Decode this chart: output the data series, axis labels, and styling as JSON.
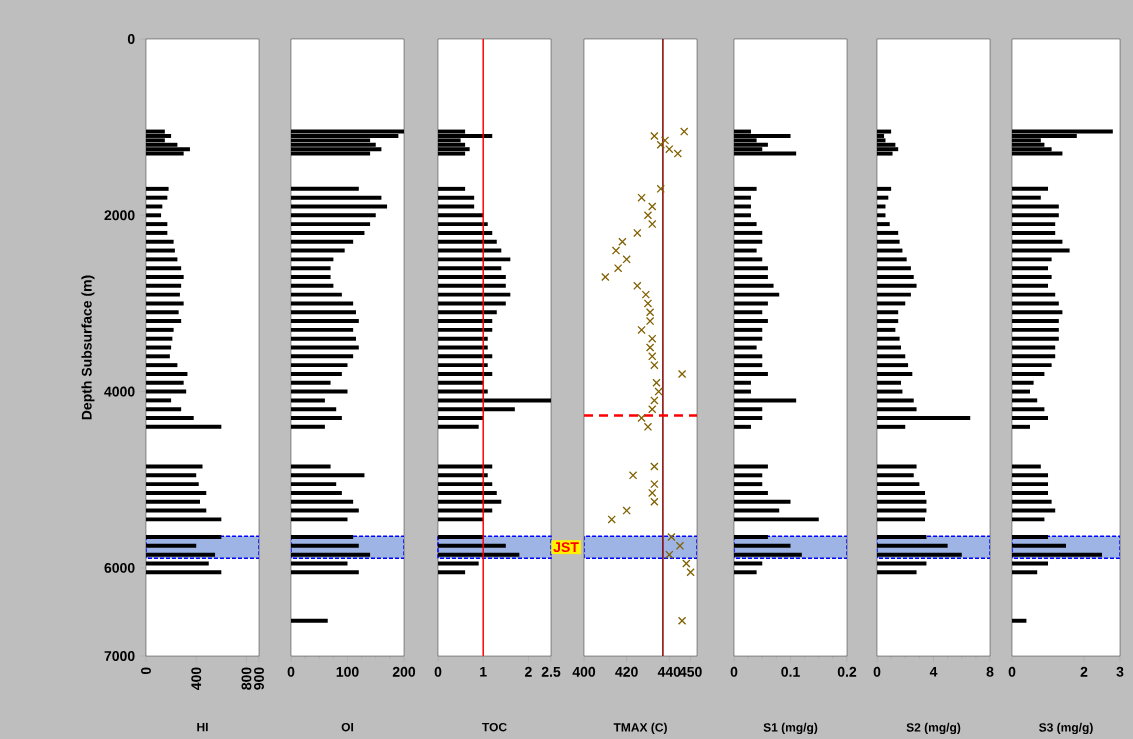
{
  "chart_data": [
    {
      "type": "bar",
      "orientation": "horizontal",
      "xlabel": "HI",
      "ylabel": "Depth Subsurface (m)",
      "color": "#000000",
      "xlim": [
        0,
        900
      ],
      "xticks": [
        0,
        400,
        800,
        900
      ],
      "ylim": [
        7000,
        0
      ],
      "yticks": [
        0,
        2000,
        4000,
        6000,
        7000
      ],
      "x": [
        1050,
        1100,
        1150,
        1200,
        1250,
        1300,
        1700,
        1800,
        1900,
        2000,
        2100,
        2200,
        2300,
        2400,
        2500,
        2600,
        2700,
        2800,
        2900,
        3000,
        3100,
        3200,
        3300,
        3400,
        3500,
        3600,
        3700,
        3800,
        3900,
        4000,
        4100,
        4200,
        4300,
        4400,
        4850,
        4950,
        5050,
        5150,
        5250,
        5350,
        5450,
        5650,
        5750,
        5850,
        5950,
        6050
      ],
      "values": [
        150,
        200,
        150,
        250,
        350,
        300,
        180,
        170,
        130,
        120,
        170,
        170,
        220,
        230,
        250,
        280,
        300,
        280,
        270,
        300,
        260,
        280,
        220,
        210,
        200,
        190,
        250,
        330,
        300,
        320,
        200,
        280,
        380,
        600,
        450,
        400,
        420,
        480,
        430,
        480,
        600,
        600,
        400,
        550,
        500,
        600
      ],
      "bands": [
        {
          "axis": "y",
          "from": 5640,
          "to": 5890,
          "color": "#9db4e4"
        }
      ]
    },
    {
      "type": "bar",
      "orientation": "horizontal",
      "xlabel": "OI",
      "color": "#000000",
      "xlim": [
        0,
        200
      ],
      "xticks": [
        0,
        100,
        200
      ],
      "ylim": [
        7000,
        0
      ],
      "tick_labels": "x",
      "x": [
        1050,
        1100,
        1150,
        1200,
        1250,
        1300,
        1700,
        1800,
        1900,
        2000,
        2100,
        2200,
        2300,
        2400,
        2500,
        2600,
        2700,
        2800,
        2900,
        3000,
        3100,
        3200,
        3300,
        3400,
        3500,
        3600,
        3700,
        3800,
        3900,
        4000,
        4100,
        4200,
        4300,
        4400,
        4850,
        4950,
        5050,
        5150,
        5250,
        5350,
        5450,
        5650,
        5750,
        5850,
        5950,
        6050,
        6600
      ],
      "values": [
        200,
        190,
        140,
        150,
        160,
        140,
        120,
        160,
        170,
        150,
        140,
        130,
        110,
        95,
        75,
        70,
        70,
        75,
        90,
        110,
        115,
        120,
        110,
        115,
        120,
        110,
        100,
        90,
        70,
        100,
        60,
        80,
        90,
        60,
        70,
        130,
        80,
        90,
        110,
        120,
        100,
        110,
        120,
        140,
        100,
        120,
        65
      ],
      "bands": [
        {
          "axis": "y",
          "from": 5640,
          "to": 5890,
          "color": "#9db4e4"
        }
      ]
    },
    {
      "type": "bar",
      "orientation": "horizontal",
      "xlabel": "TOC",
      "color": "#000000",
      "xlim": [
        0,
        2.5
      ],
      "xticks": [
        0,
        1,
        2,
        2.5
      ],
      "ylim": [
        7000,
        0
      ],
      "tick_labels": "x",
      "x": [
        1050,
        1100,
        1150,
        1200,
        1250,
        1300,
        1700,
        1800,
        1900,
        2000,
        2100,
        2200,
        2300,
        2400,
        2500,
        2600,
        2700,
        2800,
        2900,
        3000,
        3100,
        3200,
        3300,
        3400,
        3500,
        3600,
        3700,
        3800,
        3900,
        4000,
        4100,
        4200,
        4300,
        4400,
        4850,
        4950,
        5050,
        5150,
        5250,
        5350,
        5450,
        5650,
        5750,
        5850,
        5950,
        6050
      ],
      "values": [
        0.6,
        1.2,
        0.5,
        0.6,
        0.7,
        0.6,
        0.6,
        0.8,
        0.8,
        1.0,
        1.1,
        1.2,
        1.3,
        1.4,
        1.6,
        1.4,
        1.5,
        1.5,
        1.6,
        1.5,
        1.3,
        1.2,
        1.2,
        1.1,
        1.1,
        1.2,
        1.1,
        1.2,
        1.0,
        1.1,
        2.5,
        1.7,
        1.0,
        0.9,
        1.2,
        1.1,
        1.2,
        1.3,
        1.4,
        1.2,
        1.0,
        1.0,
        1.5,
        1.8,
        0.9,
        0.6
      ],
      "ref_lines": [
        {
          "axis": "x",
          "value": 1,
          "color": "#ff0000"
        }
      ],
      "bands": [
        {
          "axis": "y",
          "from": 5640,
          "to": 5890,
          "color": "#9db4e4",
          "label": "JST"
        }
      ]
    },
    {
      "type": "scatter",
      "xlabel": "TMAX (C)",
      "color": "#806000",
      "marker": "cross",
      "xlim": [
        400,
        453
      ],
      "xticks": [
        400,
        420,
        440,
        450
      ],
      "ylim": [
        7000,
        0
      ],
      "tick_labels": "x",
      "x": [
        447,
        433,
        438,
        436,
        440,
        444,
        436,
        427,
        432,
        430,
        432,
        425,
        418,
        415,
        420,
        416,
        410,
        425,
        429,
        430,
        431,
        431,
        427,
        432,
        431,
        432,
        433,
        446,
        434,
        435,
        433,
        432,
        427,
        430,
        433,
        423,
        433,
        432,
        433,
        420,
        413,
        441,
        445,
        440,
        448,
        450,
        446
      ],
      "values": [
        1050,
        1100,
        1150,
        1200,
        1250,
        1300,
        1700,
        1800,
        1900,
        2000,
        2100,
        2200,
        2300,
        2400,
        2500,
        2600,
        2700,
        2800,
        2900,
        3000,
        3100,
        3200,
        3300,
        3400,
        3500,
        3600,
        3700,
        3800,
        3900,
        4000,
        4100,
        4200,
        4300,
        4400,
        4850,
        4950,
        5050,
        5150,
        5250,
        5350,
        5450,
        5650,
        5750,
        5850,
        5950,
        6050,
        6600
      ],
      "ref_lines": [
        {
          "axis": "x",
          "value": 437,
          "color": "#800000"
        },
        {
          "axis": "y",
          "value": 4270,
          "color": "#ff0000",
          "line_style": "dashed"
        }
      ],
      "bands": [
        {
          "axis": "y",
          "from": 5640,
          "to": 5890,
          "color": "#9db4e4"
        }
      ]
    },
    {
      "type": "bar",
      "orientation": "horizontal",
      "xlabel": "S1 (mg/g)",
      "color": "#000000",
      "xlim": [
        0,
        0.2
      ],
      "xticks": [
        0,
        0.1,
        0.2
      ],
      "ylim": [
        7000,
        0
      ],
      "tick_labels": "x",
      "x": [
        1050,
        1100,
        1150,
        1200,
        1250,
        1300,
        1700,
        1800,
        1900,
        2000,
        2100,
        2200,
        2300,
        2400,
        2500,
        2600,
        2700,
        2800,
        2900,
        3000,
        3100,
        3200,
        3300,
        3400,
        3500,
        3600,
        3700,
        3800,
        3900,
        4000,
        4100,
        4200,
        4300,
        4400,
        4850,
        4950,
        5050,
        5150,
        5250,
        5350,
        5450,
        5650,
        5750,
        5850,
        5950,
        6050
      ],
      "values": [
        0.03,
        0.1,
        0.04,
        0.06,
        0.05,
        0.11,
        0.04,
        0.03,
        0.03,
        0.03,
        0.04,
        0.05,
        0.05,
        0.04,
        0.05,
        0.06,
        0.06,
        0.07,
        0.08,
        0.06,
        0.05,
        0.06,
        0.05,
        0.05,
        0.04,
        0.05,
        0.05,
        0.06,
        0.03,
        0.03,
        0.11,
        0.05,
        0.05,
        0.03,
        0.06,
        0.05,
        0.05,
        0.06,
        0.1,
        0.08,
        0.15,
        0.06,
        0.1,
        0.12,
        0.05,
        0.04
      ],
      "bands": [
        {
          "axis": "y",
          "from": 5640,
          "to": 5890,
          "color": "#9db4e4"
        }
      ]
    },
    {
      "type": "bar",
      "orientation": "horizontal",
      "xlabel": "S2 (mg/g)",
      "color": "#000000",
      "xlim": [
        0,
        8
      ],
      "xticks": [
        0,
        4,
        8
      ],
      "ylim": [
        7000,
        0
      ],
      "tick_labels": "x",
      "x": [
        1050,
        1100,
        1150,
        1200,
        1250,
        1300,
        1700,
        1800,
        1900,
        2000,
        2100,
        2200,
        2300,
        2400,
        2500,
        2600,
        2700,
        2800,
        2900,
        3000,
        3100,
        3200,
        3300,
        3400,
        3500,
        3600,
        3700,
        3800,
        3900,
        4000,
        4100,
        4200,
        4300,
        4400,
        4850,
        4950,
        5050,
        5150,
        5250,
        5350,
        5450,
        5650,
        5750,
        5850,
        5950,
        6050
      ],
      "values": [
        1.0,
        0.5,
        0.6,
        1.3,
        1.5,
        1.1,
        1.0,
        0.8,
        0.6,
        0.6,
        0.9,
        1.5,
        1.6,
        1.8,
        2.1,
        2.4,
        2.6,
        2.8,
        2.4,
        2.0,
        1.5,
        1.5,
        1.3,
        1.6,
        1.7,
        2.0,
        2.2,
        2.5,
        1.7,
        1.8,
        2.6,
        2.8,
        6.6,
        2.0,
        2.8,
        2.6,
        3.0,
        3.4,
        3.5,
        3.5,
        3.4,
        3.5,
        5.0,
        6.0,
        3.5,
        2.8
      ],
      "bands": [
        {
          "axis": "y",
          "from": 5640,
          "to": 5890,
          "color": "#9db4e4"
        }
      ]
    },
    {
      "type": "bar",
      "orientation": "horizontal",
      "xlabel": "S3 (mg/g)",
      "color": "#000000",
      "xlim": [
        0,
        3
      ],
      "xticks": [
        0,
        2,
        3
      ],
      "ylim": [
        7000,
        0
      ],
      "tick_labels": "x",
      "x": [
        1050,
        1100,
        1150,
        1200,
        1250,
        1300,
        1700,
        1800,
        1900,
        2000,
        2100,
        2200,
        2300,
        2400,
        2500,
        2600,
        2700,
        2800,
        2900,
        3000,
        3100,
        3200,
        3300,
        3400,
        3500,
        3600,
        3700,
        3800,
        3900,
        4000,
        4100,
        4200,
        4300,
        4400,
        4850,
        4950,
        5050,
        5150,
        5250,
        5350,
        5450,
        5650,
        5750,
        5850,
        5950,
        6050,
        6600
      ],
      "values": [
        2.8,
        1.8,
        0.8,
        0.9,
        1.1,
        1.4,
        1.0,
        0.8,
        1.3,
        1.3,
        1.2,
        1.2,
        1.4,
        1.6,
        1.1,
        1.0,
        1.1,
        1.0,
        1.2,
        1.3,
        1.4,
        1.3,
        1.3,
        1.3,
        1.2,
        1.2,
        1.1,
        0.9,
        0.6,
        0.5,
        0.7,
        0.9,
        1.0,
        0.5,
        0.8,
        1.0,
        1.0,
        1.0,
        1.1,
        1.2,
        0.9,
        1.0,
        1.5,
        2.5,
        1.0,
        0.7,
        0.4
      ],
      "bands": [
        {
          "axis": "y",
          "from": 5640,
          "to": 5890,
          "color": "#9db4e4"
        }
      ]
    }
  ]
}
